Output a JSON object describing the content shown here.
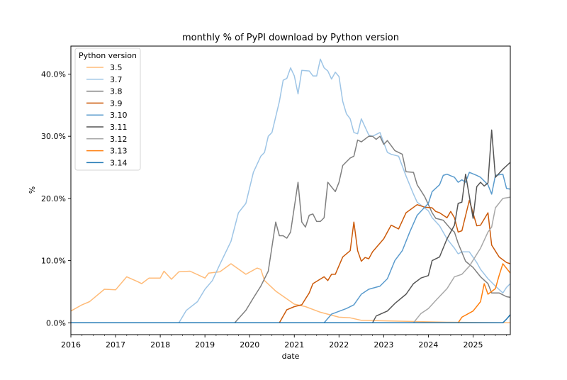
{
  "chart_data": {
    "type": "line",
    "title": "monthly % of PyPI download by Python version",
    "xlabel": "date",
    "ylabel": "%",
    "xlim": [
      "2016-01",
      "2025-11"
    ],
    "ylim": [
      -1.9,
      44.5
    ],
    "x_ticks": [
      "2016",
      "2017",
      "2018",
      "2019",
      "2020",
      "2021",
      "2022",
      "2023",
      "2024",
      "2025"
    ],
    "y_ticks": [
      0,
      10,
      20,
      30,
      40
    ],
    "y_tick_labels": [
      "0.0%",
      "10.0%",
      "20.0%",
      "30.0%",
      "40.0%"
    ],
    "grid": false,
    "legend": {
      "title": "Python version",
      "placement": "top-left"
    },
    "series": [
      {
        "name": "3.5",
        "color": "#ffbb78",
        "points": [
          [
            "2016-01",
            1.9
          ],
          [
            "2016-04",
            2.9
          ],
          [
            "2016-06",
            3.4
          ],
          [
            "2016-10",
            5.4
          ],
          [
            "2017-01",
            5.3
          ],
          [
            "2017-04",
            7.4
          ],
          [
            "2017-07",
            6.6
          ],
          [
            "2017-08",
            6.3
          ],
          [
            "2017-10",
            7.2
          ],
          [
            "2018-01",
            7.2
          ],
          [
            "2018-02",
            8.3
          ],
          [
            "2018-04",
            7.0
          ],
          [
            "2018-06",
            8.2
          ],
          [
            "2018-09",
            8.3
          ],
          [
            "2019-01",
            7.2
          ],
          [
            "2019-02",
            8.0
          ],
          [
            "2019-05",
            8.2
          ],
          [
            "2019-08",
            9.5
          ],
          [
            "2019-12",
            7.8
          ],
          [
            "2020-03",
            8.8
          ],
          [
            "2020-04",
            8.6
          ],
          [
            "2020-05",
            6.8
          ],
          [
            "2020-08",
            5.1
          ],
          [
            "2021-01",
            3.0
          ],
          [
            "2021-04",
            2.6
          ],
          [
            "2021-08",
            1.7
          ],
          [
            "2022-01",
            0.9
          ],
          [
            "2022-04",
            0.8
          ],
          [
            "2022-07",
            0.4
          ],
          [
            "2023-03",
            0.3
          ],
          [
            "2024-06",
            0.1
          ],
          [
            "2025-11",
            0.0
          ]
        ]
      },
      {
        "name": "3.7",
        "color": "#9ec5e6",
        "points": [
          [
            "2016-01",
            0
          ],
          [
            "2018-06",
            0
          ],
          [
            "2018-08",
            2.0
          ],
          [
            "2018-11",
            3.4
          ],
          [
            "2019-01",
            5.4
          ],
          [
            "2019-03",
            6.8
          ],
          [
            "2019-05",
            9.4
          ],
          [
            "2019-08",
            13.1
          ],
          [
            "2019-10",
            17.7
          ],
          [
            "2019-12",
            19.2
          ],
          [
            "2020-02",
            24.2
          ],
          [
            "2020-04",
            26.8
          ],
          [
            "2020-05",
            27.4
          ],
          [
            "2020-06",
            30.0
          ],
          [
            "2020-07",
            30.6
          ],
          [
            "2020-09",
            35.6
          ],
          [
            "2020-10",
            39.0
          ],
          [
            "2020-11",
            39.3
          ],
          [
            "2020-12",
            41.0
          ],
          [
            "2021-01",
            39.7
          ],
          [
            "2021-02",
            36.8
          ],
          [
            "2021-03",
            40.6
          ],
          [
            "2021-05",
            40.5
          ],
          [
            "2021-06",
            39.7
          ],
          [
            "2021-07",
            39.7
          ],
          [
            "2021-08",
            42.4
          ],
          [
            "2021-09",
            41.0
          ],
          [
            "2021-10",
            40.5
          ],
          [
            "2021-11",
            39.2
          ],
          [
            "2021-12",
            40.3
          ],
          [
            "2022-01",
            39.6
          ],
          [
            "2022-02",
            35.6
          ],
          [
            "2022-03",
            33.6
          ],
          [
            "2022-04",
            32.8
          ],
          [
            "2022-05",
            30.6
          ],
          [
            "2022-06",
            30.4
          ],
          [
            "2022-07",
            32.8
          ],
          [
            "2022-09",
            30.2
          ],
          [
            "2022-10",
            30.0
          ],
          [
            "2022-12",
            30.6
          ],
          [
            "2023-02",
            27.4
          ],
          [
            "2023-03",
            27.1
          ],
          [
            "2023-05",
            26.8
          ],
          [
            "2023-07",
            23.6
          ],
          [
            "2023-09",
            20.7
          ],
          [
            "2023-10",
            19.4
          ],
          [
            "2024-01",
            18.0
          ],
          [
            "2024-02",
            16.9
          ],
          [
            "2024-04",
            15.6
          ],
          [
            "2024-06",
            13.5
          ],
          [
            "2024-08",
            12.0
          ],
          [
            "2024-09",
            11.1
          ],
          [
            "2024-10",
            11.4
          ],
          [
            "2024-12",
            11.4
          ],
          [
            "2025-02",
            9.7
          ],
          [
            "2025-03",
            8.6
          ],
          [
            "2025-05",
            7.1
          ],
          [
            "2025-07",
            5.9
          ],
          [
            "2025-09",
            4.8
          ],
          [
            "2025-10",
            5.7
          ],
          [
            "2025-11",
            6.3
          ]
        ]
      },
      {
        "name": "3.8",
        "color": "#7f7f7f",
        "points": [
          [
            "2016-01",
            0
          ],
          [
            "2019-09",
            0
          ],
          [
            "2019-12",
            2.0
          ],
          [
            "2020-02",
            4.0
          ],
          [
            "2020-04",
            5.9
          ],
          [
            "2020-06",
            8.3
          ],
          [
            "2020-08",
            16.2
          ],
          [
            "2020-09",
            14.0
          ],
          [
            "2020-10",
            14.0
          ],
          [
            "2020-11",
            13.6
          ],
          [
            "2020-12",
            14.6
          ],
          [
            "2021-02",
            22.6
          ],
          [
            "2021-03",
            16.2
          ],
          [
            "2021-04",
            15.4
          ],
          [
            "2021-05",
            17.3
          ],
          [
            "2021-06",
            17.5
          ],
          [
            "2021-07",
            16.3
          ],
          [
            "2021-08",
            16.3
          ],
          [
            "2021-09",
            16.9
          ],
          [
            "2021-10",
            22.6
          ],
          [
            "2021-12",
            21.1
          ],
          [
            "2022-01",
            22.6
          ],
          [
            "2022-02",
            25.3
          ],
          [
            "2022-04",
            26.5
          ],
          [
            "2022-05",
            26.8
          ],
          [
            "2022-06",
            29.4
          ],
          [
            "2022-07",
            29.1
          ],
          [
            "2022-09",
            30.0
          ],
          [
            "2022-10",
            30.0
          ],
          [
            "2022-11",
            29.5
          ],
          [
            "2022-12",
            30.0
          ],
          [
            "2023-01",
            28.7
          ],
          [
            "2023-02",
            29.3
          ],
          [
            "2023-04",
            27.7
          ],
          [
            "2023-06",
            27.1
          ],
          [
            "2023-07",
            24.3
          ],
          [
            "2023-09",
            24.2
          ],
          [
            "2023-10",
            22.2
          ],
          [
            "2023-12",
            20.3
          ],
          [
            "2024-02",
            17.7
          ],
          [
            "2024-03",
            16.8
          ],
          [
            "2024-05",
            16.5
          ],
          [
            "2024-07",
            15.1
          ],
          [
            "2024-08",
            14.6
          ],
          [
            "2024-09",
            12.8
          ],
          [
            "2024-11",
            9.9
          ],
          [
            "2025-01",
            8.9
          ],
          [
            "2025-03",
            7.4
          ],
          [
            "2025-05",
            6.3
          ],
          [
            "2025-06",
            4.8
          ],
          [
            "2025-08",
            4.8
          ],
          [
            "2025-10",
            4.2
          ],
          [
            "2025-11",
            4.1
          ]
        ]
      },
      {
        "name": "3.9",
        "color": "#cc5a0a",
        "points": [
          [
            "2016-01",
            0
          ],
          [
            "2020-09",
            0
          ],
          [
            "2020-11",
            2.1
          ],
          [
            "2021-01",
            2.6
          ],
          [
            "2021-03",
            2.9
          ],
          [
            "2021-05",
            4.8
          ],
          [
            "2021-06",
            6.3
          ],
          [
            "2021-09",
            7.4
          ],
          [
            "2021-10",
            6.8
          ],
          [
            "2021-11",
            7.8
          ],
          [
            "2021-12",
            7.8
          ],
          [
            "2022-02",
            10.6
          ],
          [
            "2022-04",
            11.6
          ],
          [
            "2022-05",
            16.2
          ],
          [
            "2022-06",
            11.6
          ],
          [
            "2022-07",
            9.9
          ],
          [
            "2022-08",
            10.5
          ],
          [
            "2022-09",
            10.3
          ],
          [
            "2022-10",
            11.4
          ],
          [
            "2023-01",
            13.5
          ],
          [
            "2023-03",
            15.7
          ],
          [
            "2023-05",
            15.1
          ],
          [
            "2023-07",
            17.7
          ],
          [
            "2023-10",
            19.0
          ],
          [
            "2023-12",
            18.6
          ],
          [
            "2024-02",
            18.5
          ],
          [
            "2024-03",
            17.9
          ],
          [
            "2024-04",
            17.7
          ],
          [
            "2024-06",
            16.9
          ],
          [
            "2024-07",
            17.9
          ],
          [
            "2024-08",
            16.9
          ],
          [
            "2024-09",
            14.6
          ],
          [
            "2024-10",
            14.8
          ],
          [
            "2024-12",
            19.7
          ],
          [
            "2025-02",
            15.6
          ],
          [
            "2025-03",
            15.7
          ],
          [
            "2025-05",
            17.7
          ],
          [
            "2025-06",
            12.5
          ],
          [
            "2025-08",
            10.6
          ],
          [
            "2025-10",
            9.7
          ],
          [
            "2025-11",
            9.5
          ]
        ]
      },
      {
        "name": "3.10",
        "color": "#5a9bcd",
        "points": [
          [
            "2016-01",
            0
          ],
          [
            "2021-09",
            0
          ],
          [
            "2021-11",
            1.4
          ],
          [
            "2022-03",
            2.3
          ],
          [
            "2022-05",
            2.9
          ],
          [
            "2022-07",
            4.6
          ],
          [
            "2022-09",
            5.4
          ],
          [
            "2022-12",
            5.9
          ],
          [
            "2023-02",
            7.1
          ],
          [
            "2023-04",
            10.0
          ],
          [
            "2023-06",
            11.6
          ],
          [
            "2023-08",
            14.6
          ],
          [
            "2023-10",
            17.3
          ],
          [
            "2024-01",
            19.2
          ],
          [
            "2024-02",
            21.1
          ],
          [
            "2024-04",
            22.2
          ],
          [
            "2024-05",
            23.7
          ],
          [
            "2024-06",
            23.9
          ],
          [
            "2024-08",
            23.4
          ],
          [
            "2024-09",
            22.6
          ],
          [
            "2024-10",
            23.0
          ],
          [
            "2024-11",
            22.6
          ],
          [
            "2024-12",
            24.2
          ],
          [
            "2025-02",
            23.7
          ],
          [
            "2025-03",
            23.4
          ],
          [
            "2025-05",
            22.2
          ],
          [
            "2025-06",
            20.7
          ],
          [
            "2025-07",
            23.7
          ],
          [
            "2025-09",
            23.9
          ],
          [
            "2025-10",
            21.6
          ],
          [
            "2025-11",
            21.5
          ]
        ]
      },
      {
        "name": "3.11",
        "color": "#555555",
        "points": [
          [
            "2016-01",
            0
          ],
          [
            "2022-10",
            0
          ],
          [
            "2022-11",
            1.1
          ],
          [
            "2023-02",
            1.9
          ],
          [
            "2023-04",
            3.1
          ],
          [
            "2023-07",
            4.6
          ],
          [
            "2023-09",
            6.3
          ],
          [
            "2023-11",
            7.2
          ],
          [
            "2024-01",
            7.6
          ],
          [
            "2024-02",
            10.0
          ],
          [
            "2024-04",
            10.6
          ],
          [
            "2024-06",
            13.5
          ],
          [
            "2024-08",
            15.7
          ],
          [
            "2024-09",
            19.2
          ],
          [
            "2024-10",
            19.4
          ],
          [
            "2024-11",
            23.9
          ],
          [
            "2025-01",
            16.8
          ],
          [
            "2025-02",
            21.9
          ],
          [
            "2025-03",
            22.6
          ],
          [
            "2025-04",
            22.0
          ],
          [
            "2025-05",
            22.5
          ],
          [
            "2025-06",
            31.0
          ],
          [
            "2025-07",
            23.4
          ],
          [
            "2025-09",
            24.7
          ],
          [
            "2025-11",
            25.8
          ]
        ]
      },
      {
        "name": "3.12",
        "color": "#a8a8a8",
        "points": [
          [
            "2016-01",
            0
          ],
          [
            "2023-09",
            0
          ],
          [
            "2023-11",
            1.5
          ],
          [
            "2024-01",
            2.3
          ],
          [
            "2024-03",
            3.6
          ],
          [
            "2024-06",
            5.5
          ],
          [
            "2024-08",
            7.4
          ],
          [
            "2024-10",
            7.8
          ],
          [
            "2024-12",
            9.1
          ],
          [
            "2025-03",
            12.0
          ],
          [
            "2025-05",
            14.6
          ],
          [
            "2025-06",
            15.4
          ],
          [
            "2025-07",
            18.5
          ],
          [
            "2025-09",
            20.0
          ],
          [
            "2025-11",
            20.2
          ]
        ]
      },
      {
        "name": "3.13",
        "color": "#ff7f0e",
        "points": [
          [
            "2016-01",
            0
          ],
          [
            "2024-09",
            0
          ],
          [
            "2024-10",
            0.9
          ],
          [
            "2025-01",
            1.9
          ],
          [
            "2025-03",
            3.4
          ],
          [
            "2025-04",
            6.3
          ],
          [
            "2025-05",
            4.6
          ],
          [
            "2025-07",
            5.5
          ],
          [
            "2025-08",
            7.6
          ],
          [
            "2025-09",
            9.5
          ],
          [
            "2025-11",
            8.0
          ]
        ]
      },
      {
        "name": "3.14",
        "color": "#1f77b4",
        "points": [
          [
            "2016-01",
            0
          ],
          [
            "2025-09",
            0
          ],
          [
            "2025-10",
            0.6
          ],
          [
            "2025-11",
            1.3
          ]
        ]
      }
    ]
  }
}
